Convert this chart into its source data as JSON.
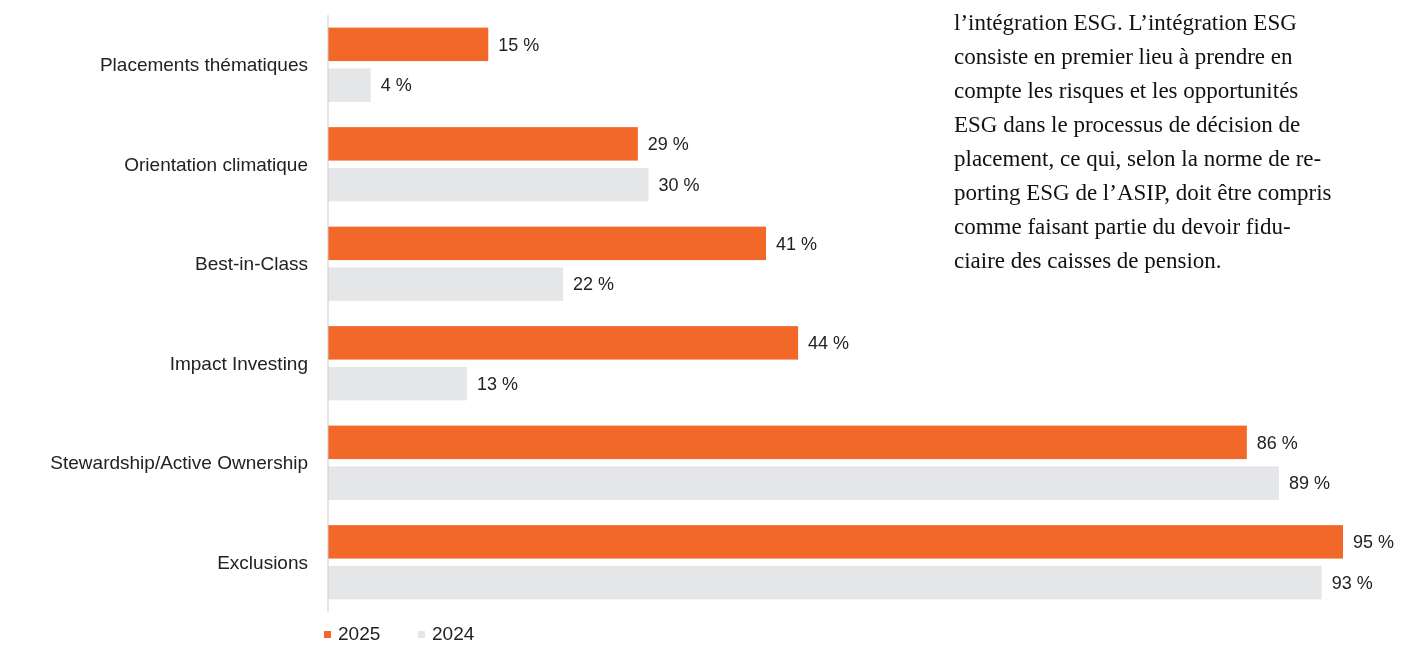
{
  "chart_data": {
    "type": "bar",
    "orientation": "horizontal",
    "categories": [
      "Placements thématiques",
      "Orientation climatique",
      "Best-in-Class",
      "Impact Investing",
      "Stewardship/Active Ownership",
      "Exclusions"
    ],
    "series": [
      {
        "name": "2025",
        "color": "#f26829",
        "values": [
          15,
          29,
          41,
          44,
          86,
          95
        ],
        "value_labels": [
          "15 %",
          "29 %",
          "41 %",
          "44 %",
          "86 %",
          "95 %"
        ]
      },
      {
        "name": "2024",
        "color": "#e5e6e8",
        "values": [
          4,
          30,
          22,
          13,
          89,
          93
        ],
        "value_labels": [
          "4 %",
          "30 %",
          "22 %",
          "13 %",
          "89 %",
          "93 %"
        ]
      }
    ],
    "tick_labels": "y",
    "legend": "bottom left",
    "annotations": [
      "l’intégration ESG. L’intégration ESG",
      "consiste en premier lieu à prendre en",
      "compte les risques et les opportunités",
      "ESG dans le processus de décision de",
      "placement, ce qui, selon la norme de re-",
      "porting ESG de l’ASIP, doit être compris",
      "comme faisant partie du devoir fidu-",
      "ciaire des caisses de pension."
    ]
  }
}
